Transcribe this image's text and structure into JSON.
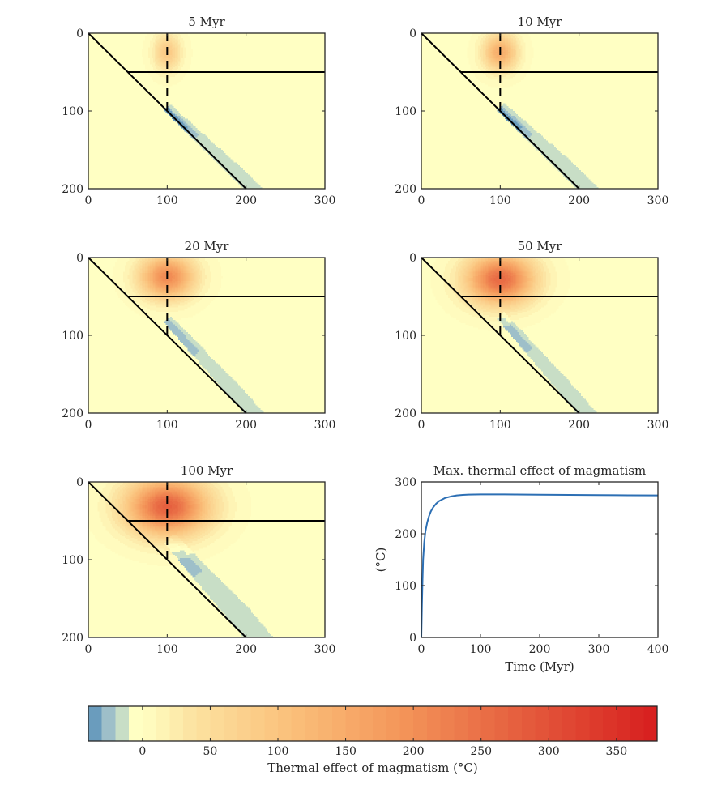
{
  "colors": {
    "background": "#ffffc3",
    "frame": "#262626",
    "curve": "#2c6fb4",
    "cold_dark": "#6a9cbd",
    "cold_mid": "#9ebfc9",
    "cold_light": "#c8dec6"
  },
  "panels": [
    {
      "title": "5 Myr",
      "xlim": [
        0,
        300
      ],
      "ylim": [
        0,
        200
      ],
      "xticks": [
        "0",
        "100",
        "200",
        "300"
      ],
      "yticks": [
        "0",
        "100",
        "200"
      ],
      "hot_anomaly": {
        "center_x": 100,
        "center_depth": 25,
        "spread_x": 16,
        "spread_depth": 22,
        "peak": 90
      },
      "cold_anomaly": {
        "x_start": 100,
        "depth_start": 100,
        "x_end": 200,
        "depth_end": 200,
        "width": 12,
        "tail": 18
      }
    },
    {
      "title": "10 Myr",
      "xlim": [
        0,
        300
      ],
      "ylim": [
        0,
        200
      ],
      "xticks": [
        "0",
        "100",
        "200",
        "300"
      ],
      "yticks": [
        "0",
        "100",
        "200"
      ],
      "hot_anomaly": {
        "center_x": 100,
        "center_depth": 25,
        "spread_x": 20,
        "spread_depth": 22,
        "peak": 150
      },
      "cold_anomaly": {
        "x_start": 100,
        "depth_start": 100,
        "x_end": 200,
        "depth_end": 200,
        "width": 15,
        "tail": 35
      }
    },
    {
      "title": "20 Myr",
      "xlim": [
        0,
        300
      ],
      "ylim": [
        0,
        200
      ],
      "xticks": [
        "0",
        "100",
        "200",
        "300"
      ],
      "yticks": [
        "0",
        "100",
        "200"
      ],
      "hot_anomaly": {
        "center_x": 100,
        "center_depth": 25,
        "spread_x": 32,
        "spread_depth": 26,
        "peak": 210
      },
      "cold_anomaly": {
        "x_start": 100,
        "depth_start": 85,
        "x_end": 200,
        "depth_end": 200,
        "width": 14,
        "tail": 32
      }
    },
    {
      "title": "50 Myr",
      "xlim": [
        0,
        300
      ],
      "ylim": [
        0,
        200
      ],
      "xticks": [
        "0",
        "100",
        "200",
        "300"
      ],
      "yticks": [
        "0",
        "100",
        "200"
      ],
      "hot_anomaly": {
        "center_x": 100,
        "center_depth": 28,
        "spread_x": 40,
        "spread_depth": 30,
        "peak": 260
      },
      "cold_anomaly": {
        "x_start": 100,
        "depth_start": 80,
        "x_end": 200,
        "depth_end": 200,
        "width": 14,
        "tail": 28
      }
    },
    {
      "title": "100 Myr",
      "xlim": [
        0,
        300
      ],
      "ylim": [
        0,
        200
      ],
      "xticks": [
        "0",
        "100",
        "200",
        "300"
      ],
      "yticks": [
        "0",
        "100",
        "200"
      ],
      "hot_anomaly": {
        "center_x": 100,
        "center_depth": 32,
        "spread_x": 48,
        "spread_depth": 34,
        "peak": 275
      },
      "cold_anomaly": {
        "x_start": 100,
        "depth_start": 80,
        "x_end": 200,
        "depth_end": 200,
        "width": 22,
        "tail": 42
      }
    }
  ],
  "structure": {
    "slab_top": [
      [
        0,
        0
      ],
      [
        200,
        200
      ]
    ],
    "moho": {
      "x_from": 50,
      "x_to": 300,
      "depth": 50
    },
    "dike": {
      "x": 100,
      "depth_from": 0,
      "depth_to": 100
    }
  },
  "chart_data": [
    {
      "type": "line",
      "title": "Max. thermal effect of magmatism",
      "xlabel": "Time (Myr)",
      "ylabel": "(°C)",
      "xlim": [
        0,
        400
      ],
      "ylim": [
        0,
        300
      ],
      "xticks": [
        "0",
        "100",
        "200",
        "300",
        "400"
      ],
      "yticks": [
        "0",
        "100",
        "200",
        "300"
      ],
      "series": [
        {
          "name": "max thermal effect",
          "x": [
            0,
            1,
            2,
            3,
            5,
            7,
            10,
            13,
            16,
            20,
            25,
            30,
            35,
            40,
            50,
            60,
            70,
            80,
            100,
            120,
            140,
            160,
            180,
            200,
            250,
            300,
            350,
            400
          ],
          "values": [
            0,
            60,
            110,
            150,
            185,
            205,
            222,
            234,
            243,
            251,
            258,
            263,
            266,
            269,
            272,
            274,
            275,
            275.5,
            276,
            276,
            276,
            275.8,
            275.6,
            275.4,
            275,
            274.6,
            274.3,
            274
          ]
        }
      ]
    },
    {
      "type": "heatmap",
      "title": "",
      "xlabel": "Thermal effect of magmatism (°C)",
      "range": [
        -40,
        380
      ],
      "step": 10,
      "ticks": [
        "0",
        "50",
        "100",
        "150",
        "200",
        "250",
        "300",
        "350"
      ]
    }
  ]
}
